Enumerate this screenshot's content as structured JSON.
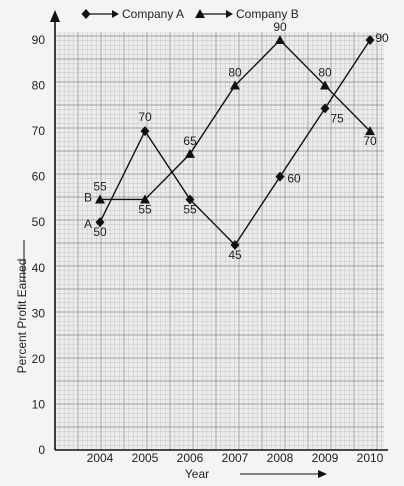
{
  "chart_data": {
    "type": "line",
    "title": "",
    "xlabel": "Year",
    "ylabel": "Percent Profit Earned",
    "categories": [
      "2004",
      "2005",
      "2006",
      "2007",
      "2008",
      "2009",
      "2010"
    ],
    "yticks": [
      "0",
      "10",
      "20",
      "30",
      "40",
      "50",
      "60",
      "70",
      "80",
      "90"
    ],
    "ylim": [
      0,
      90
    ],
    "grid": true,
    "legend_position": "top",
    "series": [
      {
        "name": "Company A",
        "marker": "diamond",
        "end_label": "A",
        "values": [
          50,
          70,
          55,
          45,
          60,
          75,
          90
        ],
        "labels": [
          "50",
          "70",
          "55",
          "45",
          "60",
          "75",
          "90"
        ]
      },
      {
        "name": "Company B",
        "marker": "triangle",
        "end_label": "B",
        "values": [
          55,
          55,
          65,
          80,
          90,
          80,
          70
        ],
        "labels": [
          "55",
          "55",
          "65",
          "80",
          "90",
          "80",
          "70"
        ]
      }
    ]
  }
}
